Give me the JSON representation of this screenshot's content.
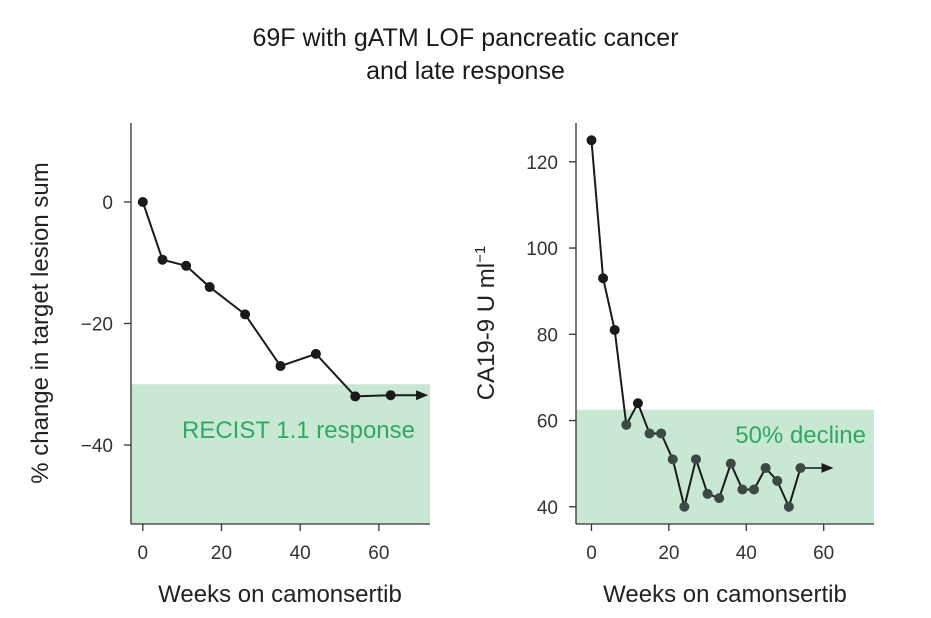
{
  "title_lines": [
    "69F with gATM LOF pancreatic cancer",
    "and late response"
  ],
  "colors": {
    "shade": "#c8e8d3",
    "shade_text": "#2fa866",
    "line": "#1a1a1a",
    "point_in_shade": "#3d4a44"
  },
  "chart_data": [
    {
      "type": "line",
      "xlabel": "Weeks on camonsertib",
      "ylabel": "% change in target lesion sum",
      "xlim": [
        -3,
        73
      ],
      "ylim": [
        -53,
        13
      ],
      "xticks": [
        0,
        20,
        40,
        60
      ],
      "yticks": [
        0,
        -20,
        -40
      ],
      "x": [
        0,
        5,
        11,
        17,
        26,
        35,
        44,
        54,
        63
      ],
      "values": [
        0,
        -9.5,
        -10.5,
        -14,
        -18.5,
        -27,
        -25,
        -32,
        -31.8
      ],
      "arrow_to": [
        72,
        -31.8
      ],
      "shaded_region": {
        "y_from": -53,
        "y_to": -30,
        "label": "RECIST 1.1 response"
      }
    },
    {
      "type": "line",
      "xlabel": "Weeks on camonsertib",
      "ylabel_base": "CA19-9 U ml",
      "ylabel_sup": "−1",
      "xlim": [
        -4,
        73
      ],
      "ylim": [
        36,
        129
      ],
      "xticks": [
        0,
        20,
        40,
        60
      ],
      "yticks": [
        40,
        60,
        80,
        100,
        120
      ],
      "x": [
        0,
        3,
        6,
        9,
        12,
        15,
        18,
        21,
        24,
        27,
        30,
        33,
        36,
        39,
        42,
        45,
        48,
        51,
        54
      ],
      "values": [
        125,
        93,
        81,
        59,
        64,
        57,
        57,
        51,
        40,
        51,
        43,
        42,
        50,
        44,
        44,
        49,
        46,
        40,
        49
      ],
      "arrow_to": [
        62,
        49
      ],
      "shaded_region": {
        "y_from": 36,
        "y_to": 62.5,
        "label": "50% decline"
      }
    }
  ]
}
